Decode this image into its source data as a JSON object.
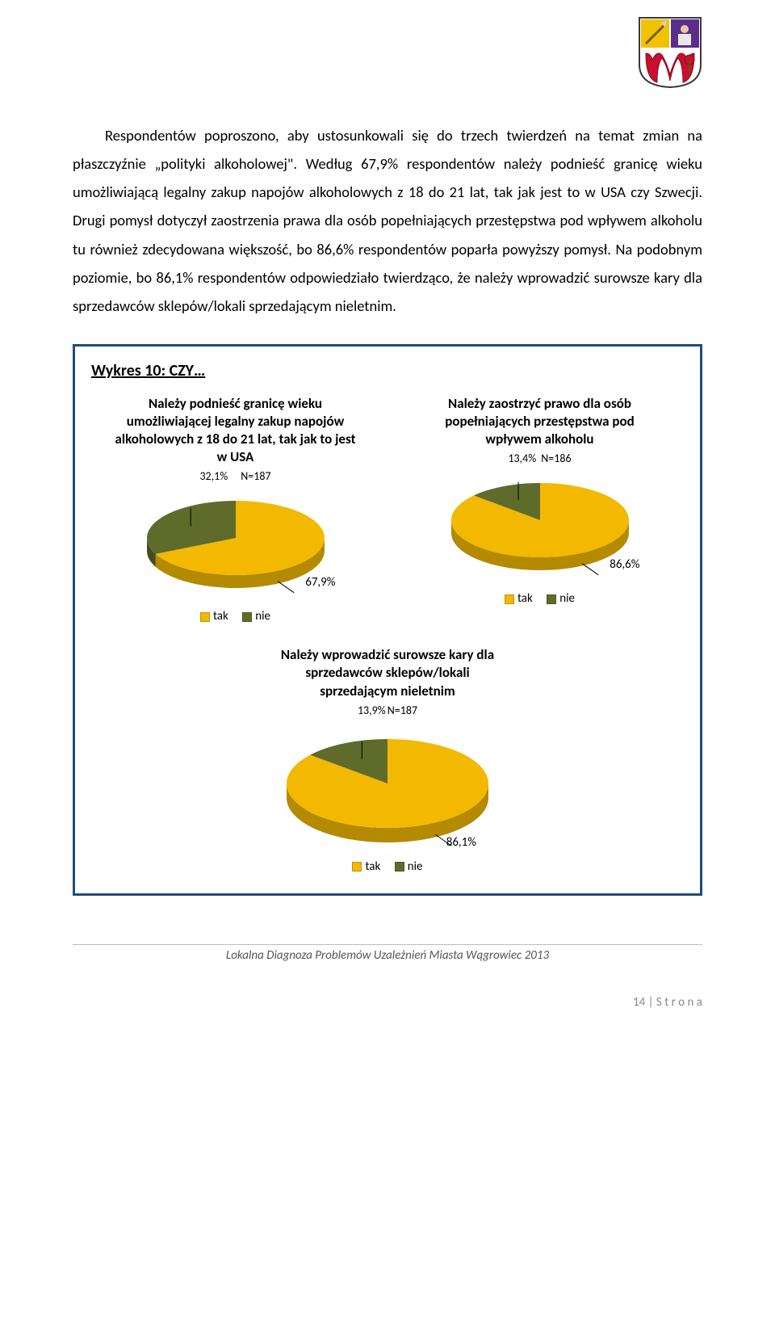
{
  "page": {
    "body_text": "<span class='indent'></span>Respondentów poproszono, aby ustosunkowali się do trzech twierdzeń na temat zmian na płaszczyźnie „polityki alkoholowej\". Według 67,9% respondentów należy podnieść granicę wieku umożliwiającą legalny zakup napojów alkoholowych z 18 do 21 lat, tak jak jest to w USA czy Szwecji. Drugi pomysł dotyczył zaostrzenia prawa dla osób popełniających przestępstwa pod wpływem alkoholu tu również zdecydowana większość, bo 86,6% respondentów poparła powyższy pomysł. Na podobnym poziomie, bo 86,1% respondentów odpowiedziało twierdząco, że należy wprowadzić surowsze kary dla sprzedawców sklepów/lokali sprzedającym nieletnim.",
    "panel_title": "Wykres 10: CZY…",
    "footer": "Lokalna Diagnoza Problemów Uzależnień Miasta Wągrowiec 2013",
    "page_number_label": "14 | S t r o n a"
  },
  "colors": {
    "yes": "#f3b800",
    "yes_side": "#b38a00",
    "no": "#5f6b2a",
    "no_side": "#434c1c",
    "panel_border": "#1f4e79"
  },
  "legend": {
    "yes_label": "tak",
    "no_label": "nie"
  },
  "chart1": {
    "title": "Należy podnieść granicę wieku umożliwiającej legalny zakup napojów alkoholowych z 18 do 21 lat, tak jak to jest w USA",
    "n_label": "N=187",
    "no_pct_label": "32,1%",
    "yes_pct_label": "67,9%",
    "yes_pct": 67.9,
    "no_pct": 32.1
  },
  "chart2": {
    "title": "Należy zaostrzyć prawo dla osób popełniających przestępstwa pod wpływem alkoholu",
    "n_label": "N=186",
    "no_pct_label": "13,4%",
    "yes_pct_label": "86,6%",
    "yes_pct": 86.6,
    "no_pct": 13.4
  },
  "chart3": {
    "title": "Należy wprowadzić surowsze kary dla sprzedawców sklepów/lokali sprzedającym nieletnim",
    "n_label": "N=187",
    "no_pct_label": "13,9%",
    "yes_pct_label": "86,1%",
    "yes_pct": 86.1,
    "no_pct": 13.9
  },
  "logo": {
    "bg_tl": "#f2c200",
    "bg_tr": "#5a2d8a",
    "bg_wh": "#ffffff",
    "letter": "#c8102e",
    "outline": "#3a3a3a"
  }
}
